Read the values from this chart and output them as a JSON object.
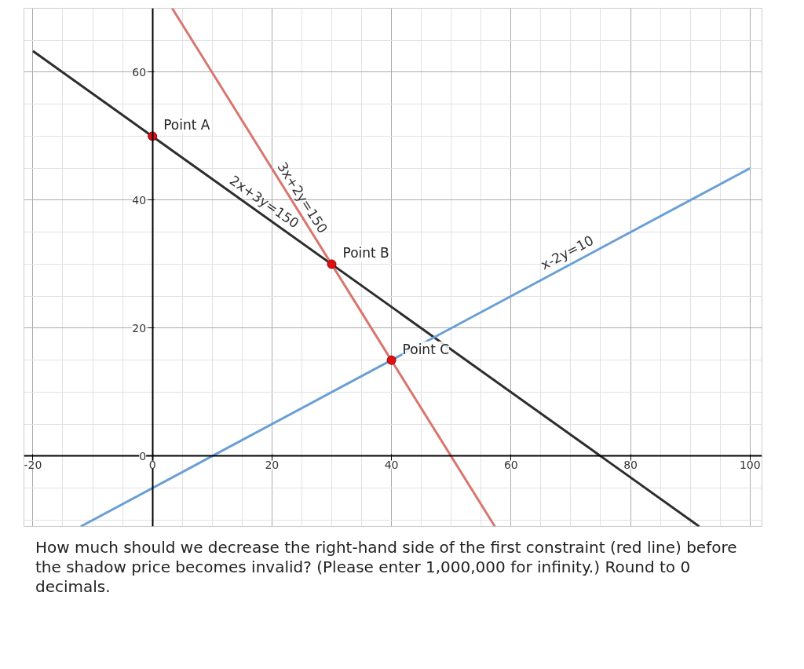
{
  "chart_data": {
    "type": "line",
    "xlim": [
      -21.5,
      102
    ],
    "ylim": [
      -11,
      70
    ],
    "xticks": [
      {
        "value": -20,
        "label": "-20"
      },
      0,
      20,
      40,
      60,
      80,
      100
    ],
    "yticks": [
      0,
      20,
      40,
      60
    ],
    "grid": true,
    "marker": "none",
    "line_style": "solid",
    "series": [
      {
        "color": "#2d2d2d",
        "x": [
          -20,
          91.5
        ],
        "values": [
          63.3,
          -11
        ]
      },
      {
        "color": "#d9756f",
        "x": [
          3.3,
          57.3
        ],
        "values": [
          70,
          -11
        ]
      },
      {
        "color": "#6a9fd4",
        "x": [
          -12,
          100
        ],
        "values": [
          -11,
          45
        ]
      },
      {
        "type": "scatter",
        "marker": "circle",
        "color": "#e01010",
        "x": [
          0,
          30,
          40
        ],
        "values": [
          50,
          30,
          15
        ]
      }
    ],
    "annotations": [
      {
        "text": "Point A",
        "x": 0,
        "y": 50
      },
      {
        "text": "Point B",
        "x": 30,
        "y": 30
      },
      {
        "text": "Point C",
        "x": 40,
        "y": 15
      },
      {
        "text": "2x+3y=150",
        "x": 18,
        "y": 38
      },
      {
        "text": "3x+2y=150",
        "x": 24,
        "y": 39
      },
      {
        "text": "x-2y=10",
        "x": 70,
        "y": 30
      },
      "How much should we decrease the right-hand side of the first constraint (red line) before the shadow price becomes invalid? (Please enter 1,000,000 for infinity.) Round to 0 decimals."
    ]
  }
}
